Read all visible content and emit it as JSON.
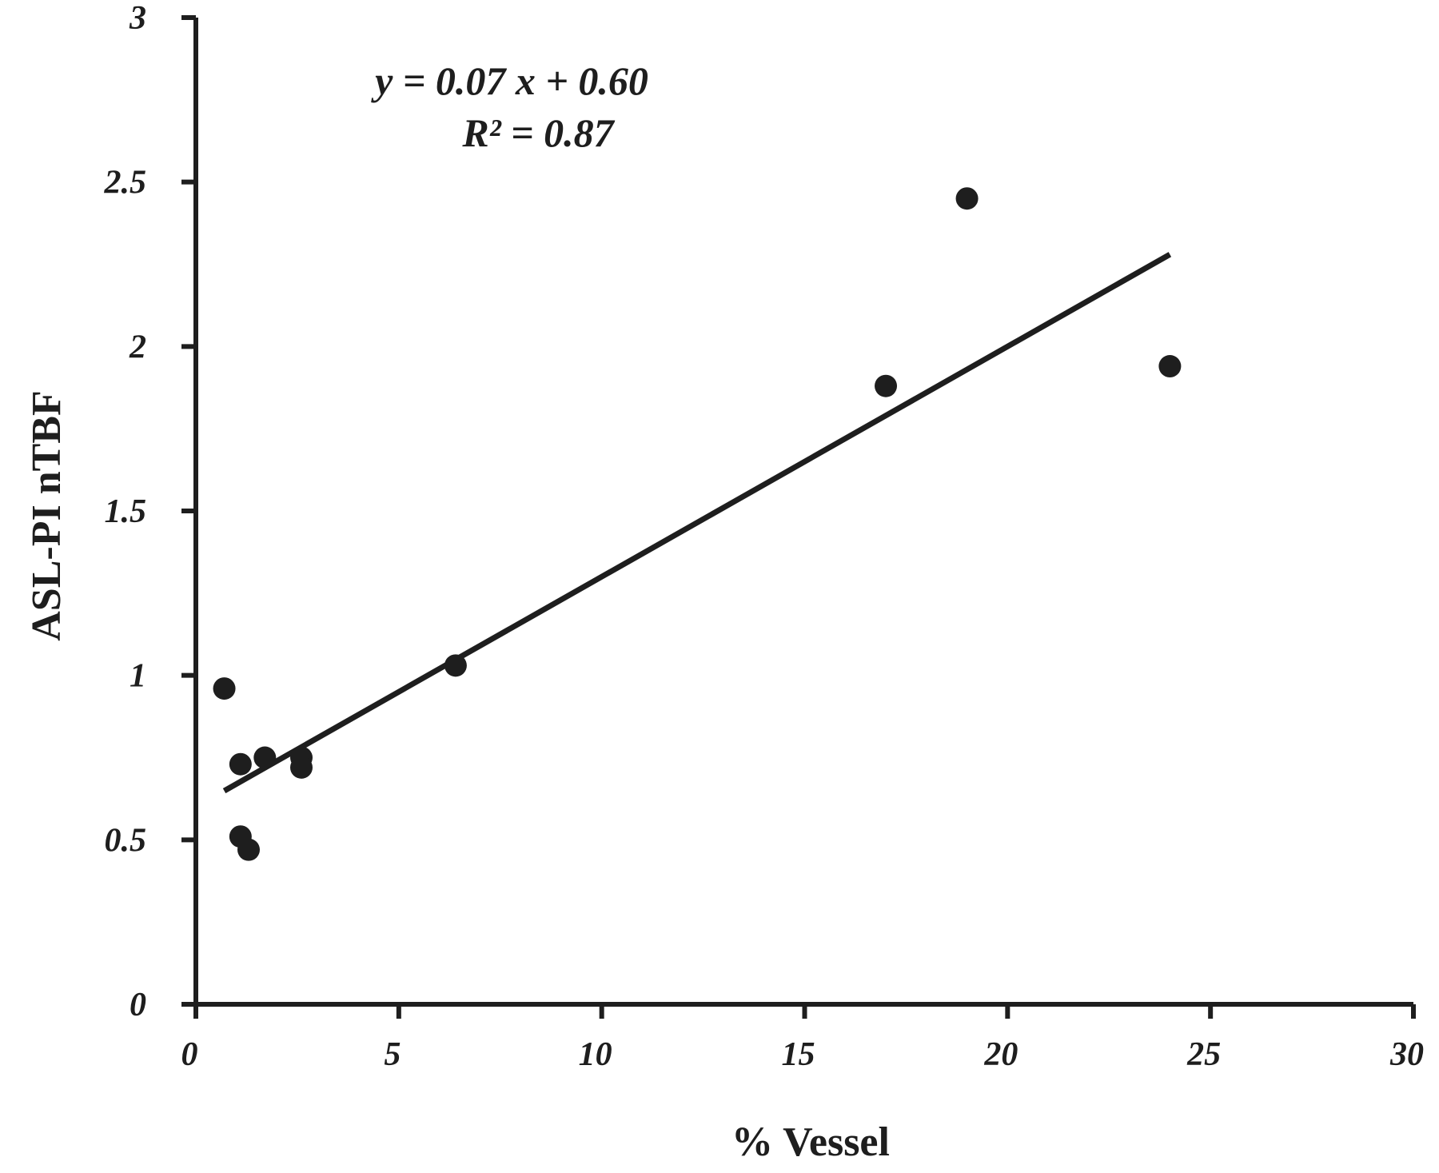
{
  "chart_data": {
    "type": "scatter",
    "xlabel": "% Vessel",
    "ylabel": "ASL-PI nTBF",
    "xlim": [
      0,
      30
    ],
    "ylim": [
      0,
      3
    ],
    "x_ticks": [
      "0",
      "5",
      "10",
      "15",
      "20",
      "25",
      "30"
    ],
    "y_ticks": [
      "0",
      "0.5",
      "1",
      "1.5",
      "2",
      "2.5",
      "3"
    ],
    "grid": false,
    "series": [
      {
        "points": [
          {
            "x": 0.7,
            "y": 0.96
          },
          {
            "x": 1.1,
            "y": 0.73
          },
          {
            "x": 1.7,
            "y": 0.75
          },
          {
            "x": 1.1,
            "y": 0.51
          },
          {
            "x": 1.3,
            "y": 0.47
          },
          {
            "x": 2.6,
            "y": 0.75
          },
          {
            "x": 2.6,
            "y": 0.72
          },
          {
            "x": 6.4,
            "y": 1.03
          },
          {
            "x": 17.0,
            "y": 1.88
          },
          {
            "x": 19.0,
            "y": 2.45
          },
          {
            "x": 24.0,
            "y": 1.94
          }
        ]
      }
    ],
    "trendline": {
      "type": "linear",
      "slope": 0.07,
      "intercept": 0.6,
      "x_range": [
        0.7,
        24.0
      ]
    },
    "annotations": [
      "y = 0.07 x + 0.60",
      "R² = 0.87"
    ],
    "colors": {
      "marks": "#1e1e1e",
      "background": "#ffffff"
    }
  }
}
